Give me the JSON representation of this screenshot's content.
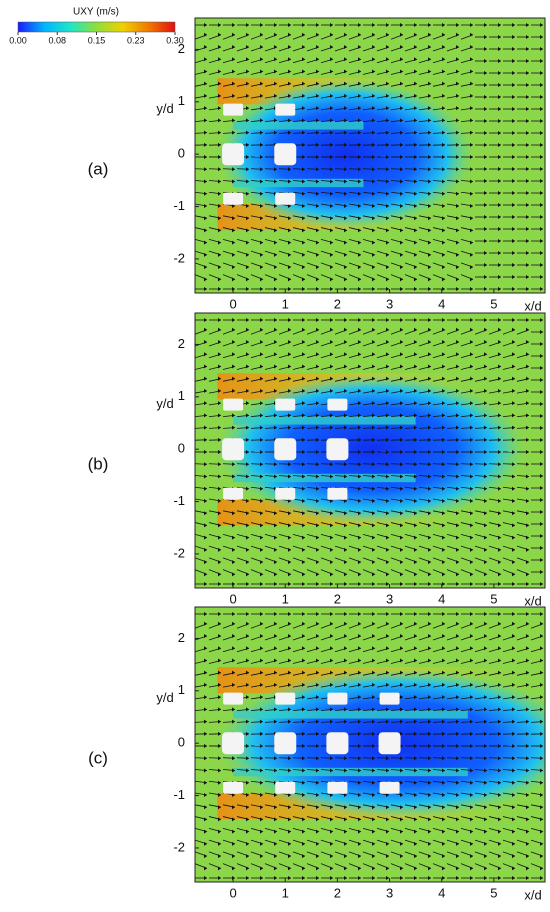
{
  "colorbar": {
    "title": "UXY (m/s)",
    "lim": [
      0,
      0.3
    ],
    "ticks": [
      {
        "value": 0,
        "label": "0.00"
      },
      {
        "value": 0.075,
        "label": "0.08"
      },
      {
        "value": 0.15,
        "label": "0.15"
      },
      {
        "value": 0.225,
        "label": "0.23"
      },
      {
        "value": 0.3,
        "label": "0.30"
      }
    ],
    "colors": [
      "#1a1aff",
      "#00b4ff",
      "#1ee6c8",
      "#8ee03a",
      "#f0d000",
      "#f07800",
      "#e01010"
    ]
  },
  "chart_data": [
    {
      "type": "field",
      "panel_label": "(a)",
      "x_label": "x/d",
      "y_label": "y/d",
      "xlim": [
        -0.73,
        5.98
      ],
      "ylim": [
        -2.65,
        2.6
      ],
      "xticks": [
        0,
        1,
        2,
        3,
        4,
        5
      ],
      "yticks": [
        -2,
        -1,
        0,
        1,
        2
      ]
    },
    {
      "type": "field",
      "panel_label": "(b)",
      "x_label": "x/d",
      "y_label": "y/d",
      "xlim": [
        -0.73,
        5.98
      ],
      "ylim": [
        -2.65,
        2.6
      ],
      "xticks": [
        0,
        1,
        2,
        3,
        4,
        5
      ],
      "yticks": [
        -2,
        -1,
        0,
        1,
        2
      ]
    },
    {
      "type": "field",
      "panel_label": "(c)",
      "x_label": "x/d",
      "y_label": "y/d",
      "xlim": [
        -0.73,
        5.98
      ],
      "ylim": [
        -2.65,
        2.6
      ],
      "xticks": [
        0,
        1,
        2,
        3,
        4,
        5
      ],
      "yticks": [
        -2,
        -1,
        0,
        1,
        2
      ]
    }
  ]
}
